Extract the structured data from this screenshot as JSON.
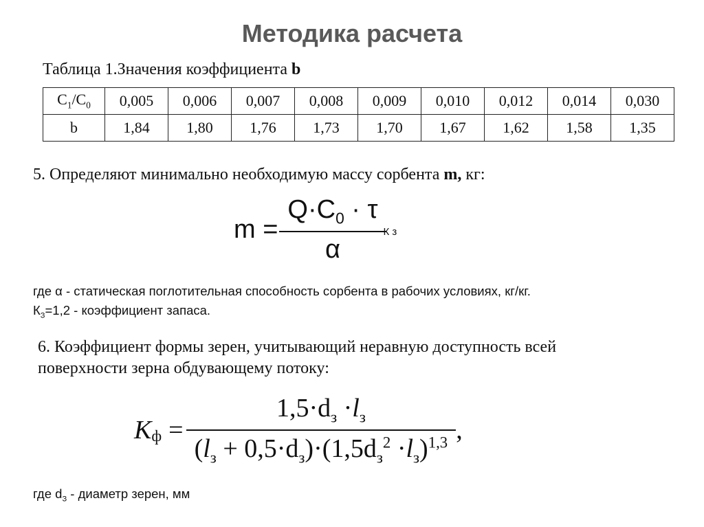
{
  "title": "Методика расчета",
  "table": {
    "caption": "Таблица 1.Значения коэффициента ",
    "caption_bold": "b",
    "row1_label": {
      "main": "C",
      "sub1": "1",
      "slash": "/C",
      "sub0": "0"
    },
    "row1": [
      "0,005",
      "0,006",
      "0,007",
      "0,008",
      "0,009",
      "0,010",
      "0,012",
      "0,014",
      "0,030"
    ],
    "row2_label": "b",
    "row2": [
      "1,84",
      "1,80",
      "1,76",
      "1,73",
      "1,70",
      "1,67",
      "1,62",
      "1,58",
      "1,35"
    ]
  },
  "step5": {
    "text": "5. Определяют минимально необходимую массу сорбента ",
    "bold": "m,",
    "unit": " кг:"
  },
  "formula_m": {
    "lhs": "m =",
    "numerator": "Q·C",
    "num_sub": "0",
    "num_tail": " · τ",
    "denominator": "α",
    "factor": "К з"
  },
  "where1": {
    "line1": "где α - статическая поглотительная способность сорбента в рабочих условиях, кг/кг.",
    "line2_main": "К",
    "line2_sub": "З",
    "line2_tail": "=1,2 - коэффициент запаса."
  },
  "step6": {
    "line1": "6. Коэффициент формы зерен, учитывающий неравную доступность всей",
    "line2": "поверхности зерна обдувающему потоку:"
  },
  "formula_k": {
    "lhs": "K",
    "lhs_sub": "ф",
    "eq": " = ",
    "numerator": "1,5·d",
    "num_sub": "з",
    "num_tail": " ·",
    "num_l": "l",
    "num_l_sub": "з",
    "den_part1": "(",
    "den_l": "l",
    "den_l_sub": "з",
    "den_mid": " + 0,5·d",
    "den_mid_sub": "з",
    "den_mid_close": ")·(1,5d",
    "den_sq_sub": "з",
    "den_sq_sup": "2",
    "den_dot": " ·",
    "den_l2": "l",
    "den_l2_sub": "з",
    "den_close": ")",
    "den_exp": "1,3",
    "comma": ","
  },
  "where2": {
    "main": "где d",
    "sub": "З",
    "tail": " - диаметр зерен, мм"
  }
}
